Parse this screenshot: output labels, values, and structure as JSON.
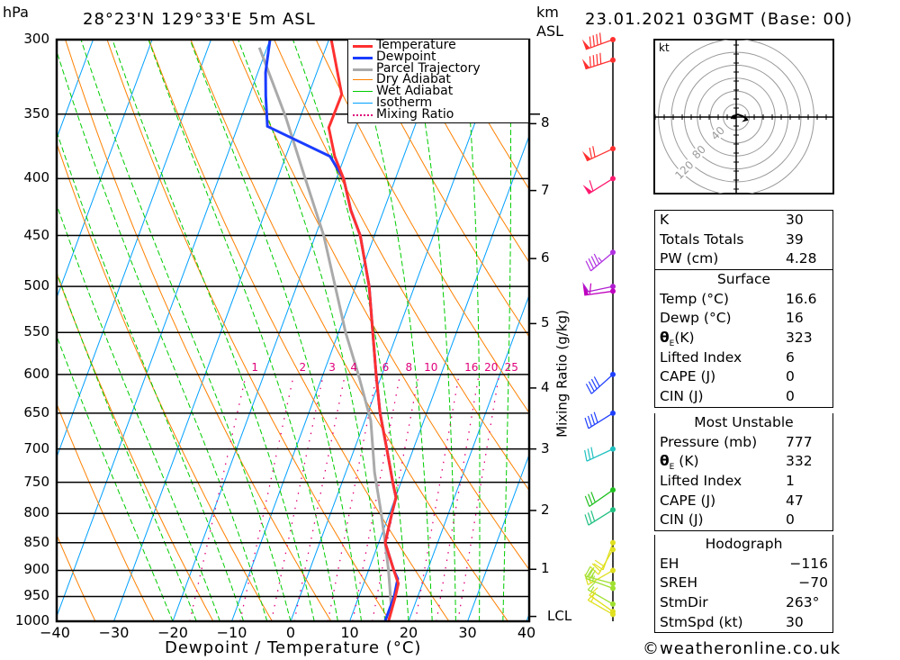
{
  "header": {
    "pressure_unit": "hPa",
    "location": "28°23'N 129°33'E 5m ASL",
    "km_unit": "km",
    "km_asl": "ASL",
    "datetime": "23.01.2021 03GMT (Base: 00)"
  },
  "legend": [
    {
      "label": "Temperature",
      "color": "#ff3030",
      "style": "thick"
    },
    {
      "label": "Dewpoint",
      "color": "#1a3cff",
      "style": "thick"
    },
    {
      "label": "Parcel Trajectory",
      "color": "#aaaaaa",
      "style": "thick"
    },
    {
      "label": "Dry Adiabat",
      "color": "#ff8000",
      "style": "thin"
    },
    {
      "label": "Wet Adiabat",
      "color": "#00cc00",
      "style": "thin"
    },
    {
      "label": "Isotherm",
      "color": "#00a0ff",
      "style": "thin"
    },
    {
      "label": "Mixing Ratio",
      "color": "#e0007a",
      "style": "dotted"
    }
  ],
  "footer": {
    "copyright": "©weatheronline.co.uk"
  },
  "chart_data": {
    "type": "line",
    "title": "28°23'N 129°33'E 5m ASL",
    "xlabel": "Dewpoint / Temperature (°C)",
    "ylabel": "hPa",
    "y2label": "Mixing Ratio (g/kg)",
    "xlim": [
      -40,
      40
    ],
    "ylim": [
      1000,
      300
    ],
    "x_ticks": [
      "-40",
      "-30",
      "-20",
      "-10",
      "0",
      "10",
      "20",
      "30",
      "40"
    ],
    "x_tick_values": [
      -40,
      -30,
      -20,
      -10,
      0,
      10,
      20,
      30,
      40
    ],
    "y_ticks": [
      "300",
      "350",
      "400",
      "450",
      "500",
      "550",
      "600",
      "650",
      "700",
      "750",
      "800",
      "850",
      "900",
      "950",
      "1000"
    ],
    "y_tick_values": [
      300,
      350,
      400,
      450,
      500,
      550,
      600,
      650,
      700,
      750,
      800,
      850,
      900,
      950,
      1000
    ],
    "km_ticks": [
      {
        "label": "8",
        "p": 357
      },
      {
        "label": "7",
        "p": 410
      },
      {
        "label": "6",
        "p": 472
      },
      {
        "label": "5",
        "p": 540
      },
      {
        "label": "4",
        "p": 617
      },
      {
        "label": "3",
        "p": 700
      },
      {
        "label": "2",
        "p": 795
      },
      {
        "label": "1",
        "p": 898
      },
      {
        "label": "LCL",
        "p": 990
      }
    ],
    "mixing_ratio_labels": [
      "1",
      "2",
      "3",
      "4",
      "6",
      "8",
      "10",
      "16",
      "20",
      "25"
    ],
    "mixing_ratio_values": [
      1,
      2,
      3,
      4,
      6,
      8,
      10,
      16,
      20,
      25
    ],
    "series": [
      {
        "name": "Temperature",
        "color": "#ff3030",
        "points": [
          [
            300,
            -29.6
          ],
          [
            336,
            -24.4
          ],
          [
            360,
            -24.5
          ],
          [
            382,
            -21.7
          ],
          [
            400,
            -18.8
          ],
          [
            427,
            -15.6
          ],
          [
            450,
            -12.4
          ],
          [
            500,
            -7.7
          ],
          [
            550,
            -4.2
          ],
          [
            600,
            -1.0
          ],
          [
            650,
            2.1
          ],
          [
            700,
            5.5
          ],
          [
            750,
            8.6
          ],
          [
            774,
            10.1
          ],
          [
            800,
            10.4
          ],
          [
            850,
            11.1
          ],
          [
            900,
            14.3
          ],
          [
            925,
            15.9
          ],
          [
            950,
            16.2
          ],
          [
            1000,
            16.6
          ]
        ]
      },
      {
        "name": "Dewpoint",
        "color": "#1a3cff",
        "points": [
          [
            300,
            -40.0
          ],
          [
            321,
            -38.7
          ],
          [
            337,
            -37.2
          ],
          [
            359,
            -35.0
          ],
          [
            364,
            -32.2
          ],
          [
            382,
            -22.5
          ],
          [
            400,
            -18.8
          ],
          [
            427,
            -15.6
          ],
          [
            450,
            -12.4
          ],
          [
            500,
            -7.7
          ],
          [
            550,
            -4.2
          ],
          [
            600,
            -1.0
          ],
          [
            650,
            2.1
          ],
          [
            700,
            5.5
          ],
          [
            750,
            8.6
          ],
          [
            774,
            10.1
          ],
          [
            800,
            10.4
          ],
          [
            850,
            11.1
          ],
          [
            900,
            14.3
          ],
          [
            916,
            15.5
          ],
          [
            950,
            16.0
          ],
          [
            1000,
            16.0
          ]
        ]
      },
      {
        "name": "Parcel Trajectory",
        "color": "#aaaaaa",
        "points": [
          [
            305,
            -41.3
          ],
          [
            352,
            -32.5
          ],
          [
            400,
            -25.3
          ],
          [
            450,
            -18.6
          ],
          [
            550,
            -8.8
          ],
          [
            600,
            -4.0
          ],
          [
            660,
            1.0
          ],
          [
            735,
            4.9
          ],
          [
            800,
            8.6
          ],
          [
            850,
            11.1
          ],
          [
            900,
            13.4
          ],
          [
            980,
            16.5
          ]
        ]
      }
    ],
    "winds": [
      {
        "p": 300,
        "dir": 250,
        "kt": 90,
        "color": "#ff3030"
      },
      {
        "p": 313,
        "dir": 252,
        "kt": 90,
        "color": "#ff3030"
      },
      {
        "p": 376,
        "dir": 245,
        "kt": 70,
        "color": "#ff3030"
      },
      {
        "p": 400,
        "dir": 238,
        "kt": 60,
        "color": "#ff1a70"
      },
      {
        "p": 466,
        "dir": 230,
        "kt": 45,
        "color": "#b030e0"
      },
      {
        "p": 500,
        "dir": 258,
        "kt": 50,
        "color": "#b020d0"
      },
      {
        "p": 505,
        "dir": 262,
        "kt": 60,
        "color": "#c000c0"
      },
      {
        "p": 600,
        "dir": 228,
        "kt": 40,
        "color": "#2040ff"
      },
      {
        "p": 650,
        "dir": 238,
        "kt": 40,
        "color": "#2040ff"
      },
      {
        "p": 700,
        "dir": 245,
        "kt": 30,
        "color": "#20c0c0"
      },
      {
        "p": 762,
        "dir": 235,
        "kt": 30,
        "color": "#20c020"
      },
      {
        "p": 794,
        "dir": 238,
        "kt": 30,
        "color": "#20c080"
      },
      {
        "p": 850,
        "dir": 200,
        "kt": 20,
        "color": "#e0e020"
      },
      {
        "p": 862,
        "dir": 210,
        "kt": 20,
        "color": "#e0e020"
      },
      {
        "p": 900,
        "dir": 240,
        "kt": 15,
        "color": "#e0e020"
      },
      {
        "p": 925,
        "dir": 285,
        "kt": 25,
        "color": "#a0e030"
      },
      {
        "p": 934,
        "dir": 290,
        "kt": 25,
        "color": "#a0e030"
      },
      {
        "p": 965,
        "dir": 300,
        "kt": 15,
        "color": "#a0e030"
      },
      {
        "p": 980,
        "dir": 305,
        "kt": 15,
        "color": "#e0e020"
      },
      {
        "p": 986,
        "dir": 300,
        "kt": 15,
        "color": "#e0e020"
      }
    ],
    "hodograph": {
      "unit": "kt",
      "ring_labels": [
        "40",
        "80",
        "120"
      ],
      "ring_values": [
        20,
        40,
        60,
        80,
        100,
        120
      ],
      "trace_kt": [
        [
          -6,
          2
        ],
        [
          -4,
          -1
        ],
        [
          2,
          -3
        ],
        [
          8,
          -1
        ],
        [
          12,
          2
        ],
        [
          10,
          4
        ],
        [
          14,
          3
        ]
      ],
      "storm_kt": [
        -3,
        0
      ]
    }
  },
  "indices": [
    {
      "label": "K",
      "value": "30"
    },
    {
      "label": "Totals Totals",
      "value": "39"
    },
    {
      "label": "PW (cm)",
      "value": "4.28"
    }
  ],
  "surface": {
    "title": "Surface",
    "rows": [
      {
        "label": "Temp (°C)",
        "value": "16.6"
      },
      {
        "label": "Dewp (°C)",
        "value": "16"
      },
      {
        "label": "θ",
        "sub": "E",
        "suffix": "(K)",
        "value": "323"
      },
      {
        "label": "Lifted Index",
        "value": "6"
      },
      {
        "label": "CAPE (J)",
        "value": "0"
      },
      {
        "label": "CIN (J)",
        "value": "0"
      }
    ]
  },
  "most_unstable": {
    "title": "Most Unstable",
    "rows": [
      {
        "label": "Pressure (mb)",
        "value": "777"
      },
      {
        "label": "θ",
        "sub": "E",
        "suffix": " (K)",
        "value": "332"
      },
      {
        "label": "Lifted Index",
        "value": "1"
      },
      {
        "label": "CAPE (J)",
        "value": "47"
      },
      {
        "label": "CIN (J)",
        "value": "0"
      }
    ]
  },
  "hodograph_table": {
    "title": "Hodograph",
    "rows": [
      {
        "label": "EH",
        "value": "−116"
      },
      {
        "label": "SREH",
        "value": "−70"
      },
      {
        "label": "StmDir",
        "value": "263°"
      },
      {
        "label": "StmSpd (kt)",
        "value": "30"
      }
    ]
  }
}
